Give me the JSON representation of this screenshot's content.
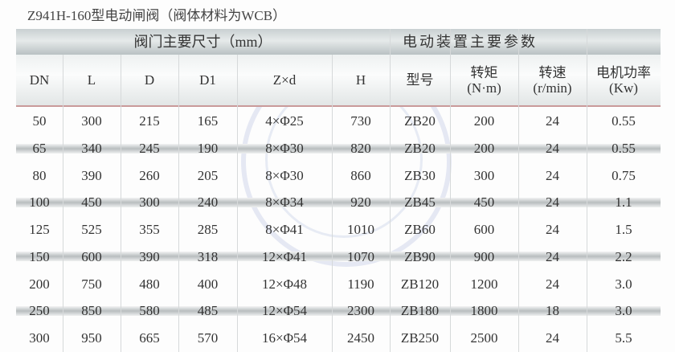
{
  "title": "Z941H-160型电动闸阀（阀体材料为WCB）",
  "group_headers": [
    "阀门主要尺寸（mm）",
    "电动装置主要参数"
  ],
  "columns": [
    "DN",
    "L",
    "D",
    "D1",
    "Z×d",
    "H",
    "型号",
    "转矩\n(N·m)",
    "转速\n(r/min)",
    "电机功率\n(Kw)"
  ],
  "rows": [
    [
      "50",
      "300",
      "215",
      "165",
      "4×Φ25",
      "730",
      "ZB20",
      "200",
      "24",
      "0.55"
    ],
    [
      "65",
      "340",
      "245",
      "190",
      "8×Φ30",
      "820",
      "ZB20",
      "200",
      "24",
      "0.55"
    ],
    [
      "80",
      "390",
      "260",
      "205",
      "8×Φ30",
      "860",
      "ZB30",
      "300",
      "24",
      "0.75"
    ],
    [
      "100",
      "450",
      "300",
      "240",
      "8×Φ34",
      "920",
      "ZB45",
      "450",
      "24",
      "1.1"
    ],
    [
      "125",
      "525",
      "355",
      "285",
      "8×Φ41",
      "1010",
      "ZB60",
      "600",
      "24",
      "1.5"
    ],
    [
      "150",
      "600",
      "390",
      "318",
      "12×Φ41",
      "1070",
      "ZB90",
      "900",
      "24",
      "2.2"
    ],
    [
      "200",
      "750",
      "480",
      "400",
      "12×Φ48",
      "1190",
      "ZB120",
      "1200",
      "24",
      "3.0"
    ],
    [
      "250",
      "850",
      "580",
      "485",
      "12×Φ54",
      "2300",
      "ZB180",
      "1800",
      "18",
      "3.0"
    ],
    [
      "300",
      "950",
      "665",
      "570",
      "16×Φ54",
      "2450",
      "ZB250",
      "2500",
      "24",
      "5.5"
    ]
  ]
}
